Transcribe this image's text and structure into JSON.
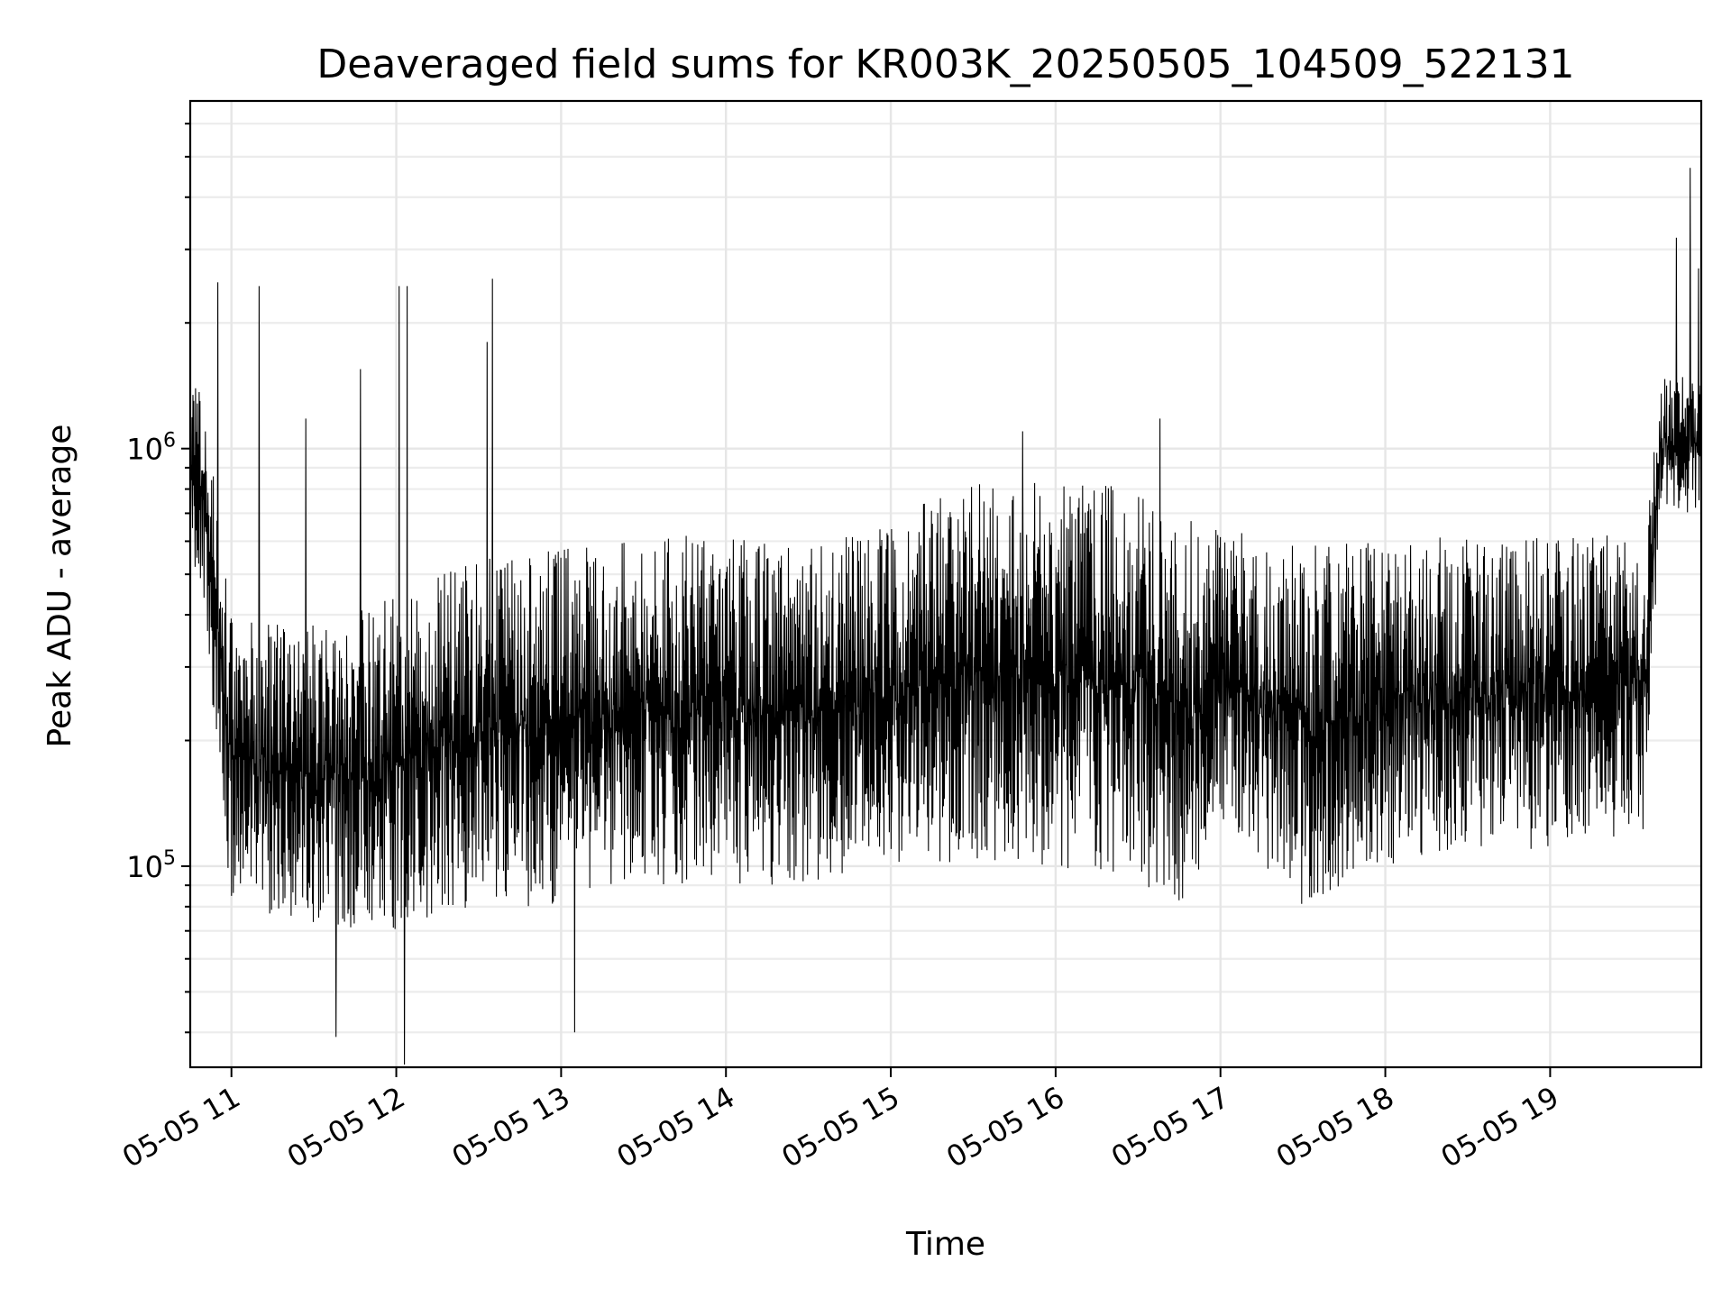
{
  "chart_data": {
    "type": "line",
    "title": "Deaveraged field sums for KR003K_20250505_104509_522131",
    "xlabel": "Time",
    "ylabel": "Peak ADU - average",
    "yscale": "log",
    "xlim": [
      "2025-05-05 10:45",
      "2025-05-05 19:55"
    ],
    "ylim": [
      33000,
      6800000
    ],
    "xticks": [
      {
        "t": "2025-05-05 11:00",
        "label": "05-05 11"
      },
      {
        "t": "2025-05-05 12:00",
        "label": "05-05 12"
      },
      {
        "t": "2025-05-05 13:00",
        "label": "05-05 13"
      },
      {
        "t": "2025-05-05 14:00",
        "label": "05-05 14"
      },
      {
        "t": "2025-05-05 15:00",
        "label": "05-05 15"
      },
      {
        "t": "2025-05-05 16:00",
        "label": "05-05 16"
      },
      {
        "t": "2025-05-05 17:00",
        "label": "05-05 17"
      },
      {
        "t": "2025-05-05 18:00",
        "label": "05-05 18"
      },
      {
        "t": "2025-05-05 19:00",
        "label": "05-05 19"
      }
    ],
    "yticks": [
      {
        "value": 100000,
        "base": "10",
        "exp": "5"
      },
      {
        "value": 1000000,
        "base": "10",
        "exp": "6"
      }
    ],
    "grid": true,
    "series_color": "#000000",
    "envelope": {
      "time": [
        "2025-05-05 10:45",
        "2025-05-05 10:50",
        "2025-05-05 11:00",
        "2025-05-05 11:30",
        "2025-05-05 12:00",
        "2025-05-05 12:30",
        "2025-05-05 13:00",
        "2025-05-05 13:30",
        "2025-05-05 14:00",
        "2025-05-05 14:30",
        "2025-05-05 15:00",
        "2025-05-05 15:30",
        "2025-05-05 16:00",
        "2025-05-05 16:30",
        "2025-05-05 16:50",
        "2025-05-05 17:00",
        "2025-05-05 17:30",
        "2025-05-05 18:00",
        "2025-05-05 18:30",
        "2025-05-05 19:00",
        "2025-05-05 19:35",
        "2025-05-05 19:40",
        "2025-05-05 19:55"
      ],
      "low": [
        600000,
        400000,
        80000,
        70000,
        70000,
        80000,
        80000,
        90000,
        90000,
        90000,
        100000,
        100000,
        100000,
        90000,
        75000,
        120000,
        80000,
        100000,
        110000,
        110000,
        120000,
        700000,
        700000
      ],
      "high": [
        1400000,
        1400000,
        400000,
        380000,
        450000,
        550000,
        580000,
        620000,
        620000,
        580000,
        680000,
        850000,
        850000,
        800000,
        680000,
        650000,
        600000,
        600000,
        620000,
        620000,
        620000,
        1500000,
        1500000
      ]
    },
    "spikes": [
      {
        "t": "2025-05-05 10:55",
        "value": 2500000
      },
      {
        "t": "2025-05-05 11:10",
        "value": 2450000
      },
      {
        "t": "2025-05-05 11:27",
        "value": 1180000
      },
      {
        "t": "2025-05-05 11:47",
        "value": 1550000
      },
      {
        "t": "2025-05-05 12:01",
        "value": 2450000
      },
      {
        "t": "2025-05-05 12:04",
        "value": 2450000
      },
      {
        "t": "2025-05-05 12:33",
        "value": 1800000
      },
      {
        "t": "2025-05-05 12:35",
        "value": 2550000
      },
      {
        "t": "2025-05-05 15:48",
        "value": 1100000
      },
      {
        "t": "2025-05-05 16:38",
        "value": 1180000
      },
      {
        "t": "2025-05-05 19:46",
        "value": 3200000
      },
      {
        "t": "2025-05-05 19:51",
        "value": 4700000
      },
      {
        "t": "2025-05-05 19:54",
        "value": 2700000
      },
      {
        "t": "2025-05-05 12:03",
        "value": 33500
      },
      {
        "t": "2025-05-05 11:38",
        "value": 39000
      },
      {
        "t": "2025-05-05 13:05",
        "value": 40000
      }
    ]
  }
}
